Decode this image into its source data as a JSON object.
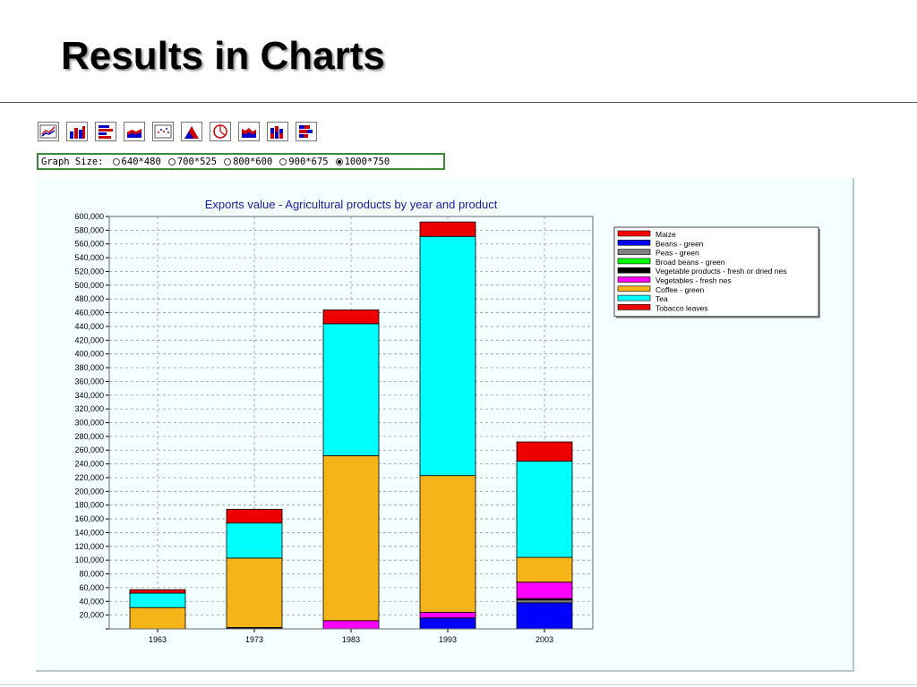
{
  "slide": {
    "title": "Results in Charts"
  },
  "toolbar": {
    "buttons": [
      {
        "icon": "line-chart-icon"
      },
      {
        "icon": "bar-chart-icon"
      },
      {
        "icon": "horizontal-bar-chart-icon"
      },
      {
        "icon": "area-chart-icon"
      },
      {
        "icon": "scatter-chart-icon"
      },
      {
        "icon": "mountain-chart-icon"
      },
      {
        "icon": "pie-chart-icon"
      },
      {
        "icon": "stacked-area-chart-icon"
      },
      {
        "icon": "stacked-bar-chart-icon"
      },
      {
        "icon": "stacked-horizontal-bar-chart-icon"
      }
    ]
  },
  "graph_size": {
    "label": "Graph Size:",
    "options": [
      "640*480",
      "700*525",
      "800*600",
      "900*675",
      "1000*750"
    ],
    "selected": "1000*750"
  },
  "chart_data": {
    "type": "bar",
    "stacked": true,
    "title": "Exports value - Agricultural products  by year  and product",
    "xlabel": "",
    "ylabel": "",
    "ylim": [
      0,
      600000
    ],
    "ytick_step": 20000,
    "grid": true,
    "legend_position": "right",
    "categories": [
      "1963",
      "1973",
      "1983",
      "1993",
      "2003"
    ],
    "series": [
      {
        "name": "Maize",
        "color": "#ff0000",
        "values": [
          0,
          0,
          0,
          0,
          0
        ]
      },
      {
        "name": "Beans - green",
        "color": "#0000ff",
        "values": [
          0,
          0,
          0,
          16000,
          38000
        ]
      },
      {
        "name": "Peas - green",
        "color": "#808080",
        "values": [
          0,
          0,
          0,
          0,
          4000
        ]
      },
      {
        "name": "Broad beans - green",
        "color": "#00ff00",
        "values": [
          0,
          0,
          0,
          0,
          0
        ]
      },
      {
        "name": "Vegetable products - fresh or dried nes",
        "color": "#000000",
        "values": [
          0,
          2000,
          0,
          0,
          2000
        ]
      },
      {
        "name": "Vegetables - fresh nes",
        "color": "#ff00ff",
        "values": [
          0,
          0,
          12000,
          8000,
          24000
        ]
      },
      {
        "name": "Coffee - green",
        "color": "#f5b417",
        "values": [
          31000,
          101000,
          240000,
          199000,
          36000
        ]
      },
      {
        "name": "Tea",
        "color": "#00ffff",
        "values": [
          21000,
          51000,
          192000,
          348000,
          140000
        ]
      },
      {
        "name": "Tobacco leaves",
        "color": "#ee0000",
        "values": [
          5000,
          20000,
          20000,
          21000,
          28000
        ]
      }
    ]
  }
}
